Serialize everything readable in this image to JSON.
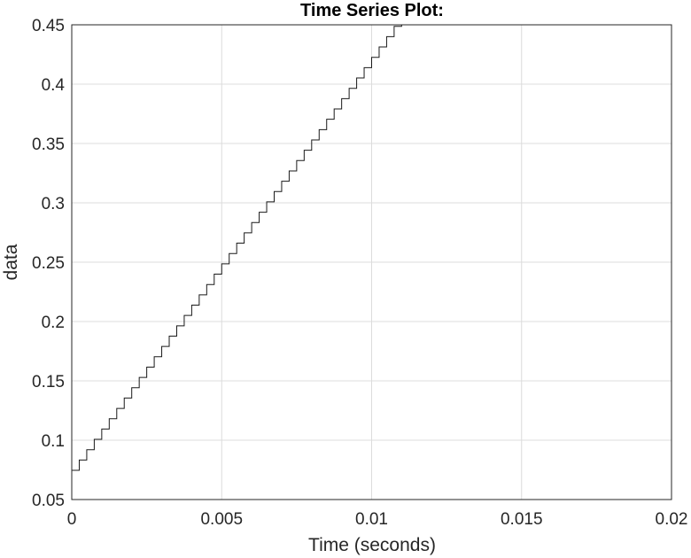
{
  "chart_data": {
    "type": "line",
    "style": "stairs",
    "title": "Time Series Plot:",
    "xlabel": "Time (seconds)",
    "ylabel": "data",
    "xlim": [
      0,
      0.02
    ],
    "ylim": [
      0.05,
      0.45
    ],
    "xticks": [
      0,
      0.005,
      0.01,
      0.015,
      0.02
    ],
    "xtick_labels": [
      "0",
      "0.005",
      "0.01",
      "0.015",
      "0.02"
    ],
    "yticks": [
      0.05,
      0.1,
      0.15,
      0.2,
      0.25,
      0.3,
      0.35,
      0.4,
      0.45
    ],
    "ytick_labels": [
      "0.05",
      "0.1",
      "0.15",
      "0.2",
      "0.25",
      "0.3",
      "0.35",
      "0.4",
      "0.45"
    ],
    "grid": true,
    "line_color": "#1a1a1a",
    "series": [
      {
        "x_start": 0,
        "x_step": 0.00025,
        "y_start": 0.0746,
        "y_step": 0.0087,
        "x_end": 0.02,
        "y_max": 0.45
      }
    ]
  }
}
